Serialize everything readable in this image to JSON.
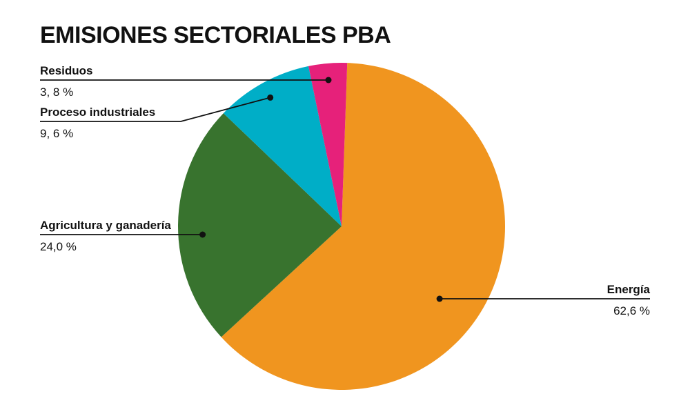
{
  "chart_data": {
    "type": "pie",
    "title": "EMISIONES SECTORIALES PBA",
    "slices": [
      {
        "name": "Energía",
        "value": 62.6,
        "display": "62,6 %",
        "color": "#F0951F"
      },
      {
        "name": "Agricultura y ganadería",
        "value": 24.0,
        "display": "24,0 %",
        "color": "#38732E"
      },
      {
        "name": "Proceso industriales",
        "value": 9.6,
        "display": "9, 6 %",
        "color": "#00AEC7"
      },
      {
        "name": "Residuos",
        "value": 3.8,
        "display": "3, 8 %",
        "color": "#E6217A"
      }
    ]
  }
}
